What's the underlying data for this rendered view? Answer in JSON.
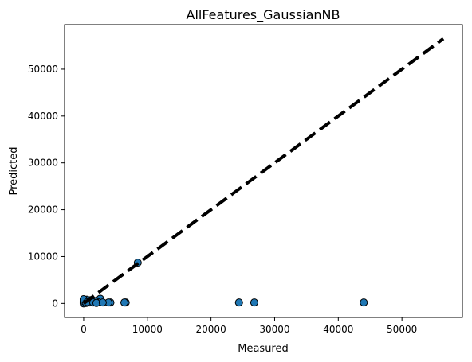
{
  "chart_data": {
    "type": "scatter",
    "title": "AllFeatures_GaussianNB",
    "xlabel": "Measured",
    "ylabel": "Predicted",
    "xlim": [
      -3000,
      59500
    ],
    "ylim": [
      -3000,
      59500
    ],
    "xticks": [
      0,
      10000,
      20000,
      30000,
      40000,
      50000
    ],
    "yticks": [
      0,
      10000,
      20000,
      30000,
      40000,
      50000
    ],
    "grid": false,
    "point_color": "#1f77b4",
    "point_edge_color": "#000000",
    "reference_line": {
      "x": [
        0,
        56500
      ],
      "y": [
        0,
        56500
      ],
      "style": "dashed",
      "color": "#000000"
    },
    "series": [
      {
        "x": [
          8500,
          44000,
          26800,
          24400,
          6600,
          6400,
          4200,
          3900,
          2600,
          2200,
          1800,
          1300,
          1100,
          900,
          700,
          500,
          300,
          200,
          100,
          50,
          0,
          0,
          0,
          0,
          400,
          600,
          1500,
          2000,
          3000
        ],
        "y": [
          8700,
          200,
          200,
          200,
          200,
          200,
          200,
          200,
          1000,
          300,
          500,
          400,
          700,
          200,
          600,
          800,
          300,
          100,
          700,
          400,
          0,
          200,
          500,
          900,
          100,
          300,
          200,
          100,
          200
        ]
      }
    ]
  }
}
